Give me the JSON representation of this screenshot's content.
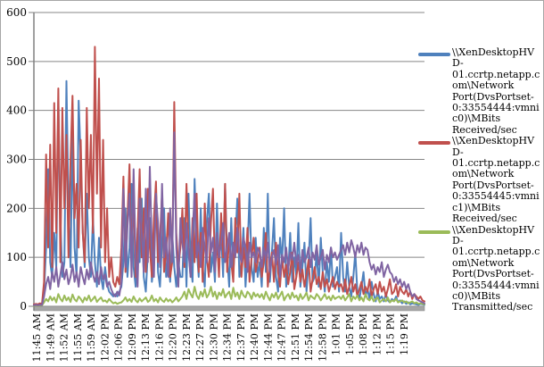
{
  "chart_data": {
    "type": "line",
    "title": "",
    "grid": "horizontal",
    "legend_position": "right",
    "x_axis": {
      "label_rotation_deg": -90,
      "labels": [
        "11:45 AM",
        "11:49 AM",
        "11:52 AM",
        "11:55 AM",
        "11:59 AM",
        "12:02 PM",
        "12:06 PM",
        "12:09 PM",
        "12:13 PM",
        "12:16 PM",
        "12:20 PM",
        "12:23 PM",
        "12:27 PM",
        "12:30 PM",
        "12:34 PM",
        "12:37 PM",
        "12:40 PM",
        "12:44 PM",
        "12:47 PM",
        "12:51 PM",
        "12:54 PM",
        "12:58 PM",
        "1:01 PM",
        "1:05 PM",
        "1:08 PM",
        "1:12 PM",
        "1:15 PM",
        "1:19 PM"
      ]
    },
    "y_axis": {
      "min": 0,
      "max": 600,
      "tick_interval": 100,
      "ticks": [
        0,
        100,
        200,
        300,
        400,
        500,
        600
      ]
    },
    "colors": {
      "series_blue": "#4F81BD",
      "series_red": "#C0504D",
      "series_green": "#9BBB59",
      "series_purple": "#8064A2",
      "gridline": "#878787",
      "axis": "#808080",
      "axis_bar_fill": "#A6A6A6",
      "label_text": "#000000",
      "frame_border": "#A6A6A6"
    },
    "series": [
      {
        "name": "\\\\XenDesktopHVD-01.ccrtp.netapp.com\\Network Port(DvsPortset-0:33554444:vmnic0)\\MBits Received/sec",
        "color": "#4F81BD",
        "legend_visible": true,
        "values": [
          3,
          4,
          3,
          5,
          4,
          30,
          120,
          280,
          90,
          60,
          150,
          80,
          420,
          180,
          60,
          90,
          460,
          200,
          80,
          350,
          120,
          60,
          420,
          300,
          150,
          80,
          230,
          100,
          60,
          180,
          90,
          40,
          140,
          60,
          35,
          80,
          45,
          30,
          25,
          20,
          25,
          20,
          30,
          40,
          90,
          200,
          60,
          120,
          250,
          80,
          40,
          160,
          90,
          220,
          60,
          30,
          110,
          180,
          50,
          90,
          240,
          70,
          40,
          130,
          200,
          60,
          100,
          50,
          150,
          80,
          40,
          90,
          60,
          60,
          180,
          40,
          230,
          90,
          50,
          260,
          120,
          60,
          200,
          80,
          40,
          170,
          230,
          70,
          110,
          50,
          210,
          90,
          150,
          60,
          250,
          100,
          40,
          180,
          70,
          130,
          220,
          60,
          90,
          160,
          40,
          110,
          230,
          80,
          50,
          140,
          60,
          90,
          40,
          160,
          70,
          230,
          50,
          110,
          180,
          60,
          30,
          140,
          90,
          200,
          40,
          70,
          150,
          50,
          100,
          60,
          170,
          40,
          80,
          130,
          30,
          90,
          180,
          50,
          60,
          110,
          40,
          140,
          70,
          30,
          90,
          50,
          120,
          40,
          60,
          80,
          30,
          150,
          60,
          30,
          90,
          40,
          20,
          60,
          110,
          30,
          15,
          40,
          70,
          20,
          35,
          15,
          50,
          25,
          10,
          30,
          15,
          20,
          10,
          25,
          12,
          8,
          15,
          10,
          20,
          8,
          12,
          6,
          10,
          5,
          8,
          4,
          6,
          5,
          4,
          3,
          5,
          4,
          3
        ]
      },
      {
        "name": "\\\\XenDesktopHVD-01.ccrtp.netapp.com\\Network Port(DvsPortset-0:33554445:vmnic1)\\MBits Received/sec",
        "color": "#C0504D",
        "legend_visible": true,
        "values": [
          4,
          5,
          4,
          6,
          5,
          50,
          310,
          120,
          330,
          80,
          415,
          150,
          445,
          90,
          405,
          200,
          350,
          100,
          300,
          430,
          180,
          250,
          120,
          340,
          150,
          90,
          405,
          200,
          350,
          150,
          530,
          230,
          465,
          120,
          340,
          90,
          200,
          60,
          100,
          50,
          40,
          60,
          45,
          120,
          265,
          70,
          180,
          290,
          90,
          230,
          60,
          150,
          280,
          100,
          200,
          70,
          240,
          120,
          60,
          180,
          255,
          90,
          140,
          230,
          70,
          110,
          190,
          60,
          90,
          417,
          150,
          80,
          120,
          200,
          80,
          250,
          120,
          60,
          180,
          90,
          230,
          70,
          150,
          50,
          210,
          100,
          60,
          170,
          240,
          80,
          130,
          60,
          190,
          100,
          250,
          70,
          140,
          90,
          50,
          180,
          110,
          230,
          60,
          120,
          80,
          160,
          50,
          100,
          140,
          70,
          90,
          120,
          60,
          90,
          150,
          40,
          80,
          110,
          50,
          130,
          70,
          40,
          100,
          60,
          85,
          45,
          70,
          110,
          35,
          60,
          90,
          50,
          75,
          40,
          65,
          95,
          30,
          55,
          80,
          45,
          60,
          35,
          70,
          40,
          55,
          30,
          45,
          60,
          35,
          50,
          40,
          45,
          30,
          55,
          25,
          40,
          60,
          30,
          45,
          20,
          35,
          50,
          25,
          40,
          30,
          55,
          20,
          35,
          45,
          25,
          50,
          30,
          40,
          20,
          35,
          55,
          25,
          30,
          45,
          20,
          40,
          30,
          25,
          35,
          20,
          30,
          15,
          25,
          20,
          15,
          20,
          12,
          10
        ]
      },
      {
        "name": "\\\\XenDesktopHVD-01.ccrtp.netapp.com\\Network Port(DvsPortset-0:33554444:vmnic0)\\MBits Transmitted/sec",
        "color": "#9BBB59",
        "legend_visible": true,
        "values": [
          1,
          2,
          1,
          2,
          2,
          8,
          15,
          10,
          20,
          12,
          18,
          8,
          25,
          15,
          10,
          22,
          12,
          18,
          9,
          24,
          14,
          10,
          20,
          15,
          8,
          18,
          12,
          22,
          10,
          15,
          20,
          9,
          14,
          18,
          10,
          12,
          8,
          15,
          10,
          6,
          8,
          5,
          7,
          8,
          12,
          18,
          10,
          15,
          9,
          20,
          12,
          8,
          16,
          10,
          14,
          18,
          9,
          12,
          22,
          10,
          15,
          8,
          18,
          12,
          9,
          16,
          10,
          14,
          8,
          12,
          18,
          10,
          15,
          20,
          30,
          15,
          35,
          25,
          18,
          40,
          22,
          15,
          30,
          20,
          35,
          18,
          25,
          40,
          20,
          30,
          15,
          28,
          22,
          35,
          18,
          25,
          30,
          15,
          38,
          20,
          28,
          15,
          32,
          22,
          18,
          30,
          25,
          15,
          28,
          20,
          25,
          18,
          25,
          15,
          30,
          20,
          12,
          25,
          18,
          28,
          15,
          22,
          30,
          12,
          20,
          25,
          15,
          28,
          18,
          22,
          12,
          25,
          15,
          20,
          28,
          12,
          22,
          18,
          15,
          25,
          20,
          12,
          18,
          25,
          15,
          20,
          12,
          22,
          15,
          18,
          20,
          15,
          22,
          12,
          18,
          25,
          10,
          20,
          15,
          22,
          12,
          18,
          10,
          25,
          15,
          12,
          20,
          10,
          15,
          18,
          8,
          12,
          15,
          10,
          18,
          8,
          12,
          10,
          15,
          8,
          10,
          12,
          8,
          10,
          6,
          8,
          10,
          6,
          8,
          5,
          6,
          5,
          4
        ]
      },
      {
        "name": "",
        "color": "#8064A2",
        "legend_visible": false,
        "values": [
          2,
          3,
          2,
          3,
          3,
          20,
          45,
          60,
          35,
          70,
          50,
          80,
          40,
          65,
          90,
          55,
          75,
          45,
          60,
          85,
          50,
          70,
          40,
          80,
          60,
          45,
          75,
          55,
          90,
          65,
          50,
          70,
          45,
          80,
          55,
          65,
          40,
          50,
          35,
          25,
          20,
          30,
          22,
          50,
          240,
          80,
          160,
          230,
          60,
          280,
          100,
          40,
          220,
          150,
          70,
          240,
          90,
          285,
          120,
          60,
          230,
          170,
          80,
          250,
          100,
          140,
          60,
          200,
          90,
          355,
          120,
          40,
          180,
          130,
          90,
          170,
          110,
          60,
          150,
          230,
          100,
          130,
          80,
          160,
          120,
          90,
          180,
          110,
          140,
          70,
          150,
          100,
          130,
          170,
          90,
          120,
          150,
          80,
          130,
          100,
          160,
          110,
          90,
          140,
          120,
          70,
          130,
          100,
          110,
          90,
          120,
          110,
          80,
          120,
          95,
          130,
          70,
          100,
          115,
          85,
          125,
          60,
          105,
          90,
          120,
          75,
          110,
          95,
          130,
          85,
          105,
          70,
          115,
          90,
          100,
          120,
          80,
          110,
          95,
          125,
          85,
          100,
          115,
          75,
          105,
          90,
          120,
          100,
          110,
          95,
          105,
          115,
          125,
          105,
          130,
          110,
          135,
          120,
          100,
          125,
          110,
          130,
          105,
          120,
          115,
          90,
          75,
          85,
          65,
          80,
          70,
          90,
          60,
          75,
          85,
          70,
          65,
          50,
          60,
          45,
          55,
          40,
          50,
          35,
          45,
          30,
          20,
          25,
          15,
          12,
          10,
          8,
          6
        ]
      }
    ],
    "legend": {
      "entries": [
        {
          "label": "\\\\XenDesktopHVD-01.ccrtp.netapp.com\\Network Port(DvsPortset-0:33554444:vmnic0)\\MBits Received/sec",
          "color": "#4F81BD"
        },
        {
          "label": "\\\\XenDesktopHVD-01.ccrtp.netapp.com\\Network Port(DvsPortset-0:33554445:vmnic1)\\MBits Received/sec",
          "color": "#C0504D"
        },
        {
          "label": "\\\\XenDesktopHVD-01.ccrtp.netapp.com\\Network Port(DvsPortset-0:33554444:vmnic0)\\MBits Transmitted/sec",
          "color": "#9BBB59"
        }
      ]
    }
  }
}
